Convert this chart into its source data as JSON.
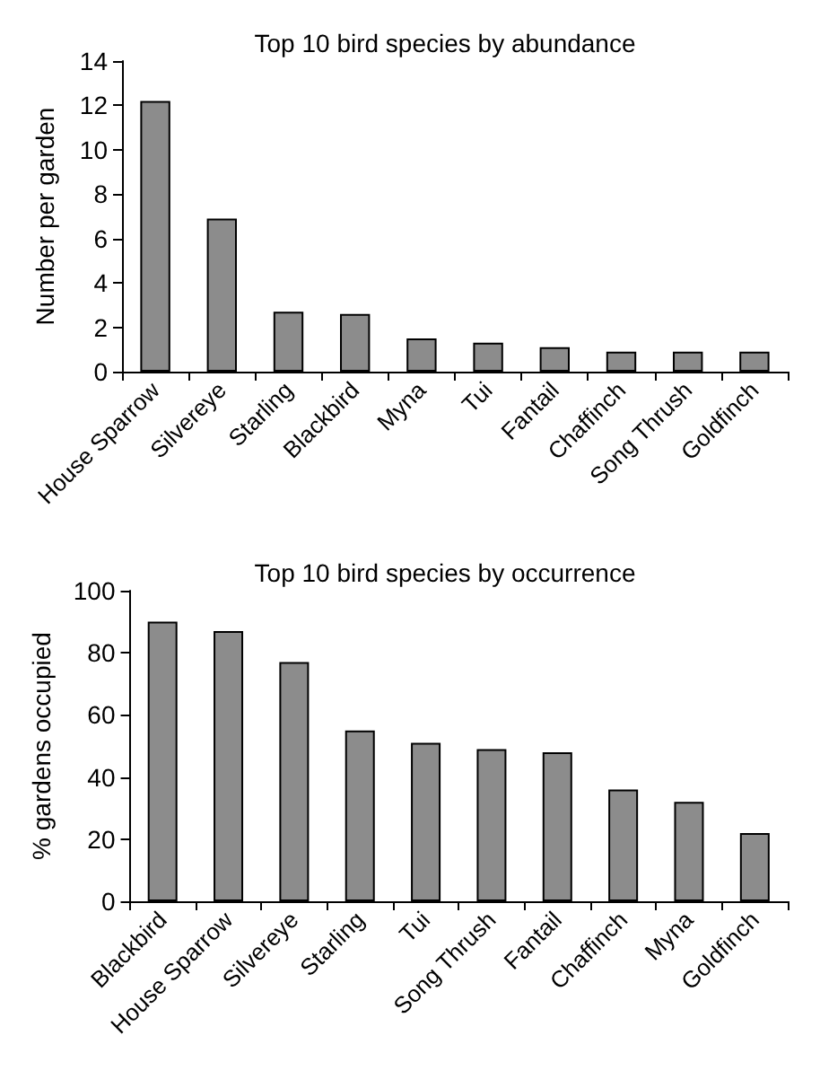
{
  "chart_data": [
    {
      "type": "bar",
      "title": "Top 10 bird species by abundance",
      "ylabel": "Number per garden",
      "categories": [
        "House Sparrow",
        "Silvereye",
        "Starling",
        "Blackbird",
        "Myna",
        "Tui",
        "Fantail",
        "Chaffinch",
        "Song Thrush",
        "Goldfinch"
      ],
      "values": [
        12.2,
        6.9,
        2.7,
        2.6,
        1.5,
        1.3,
        1.1,
        0.9,
        0.9,
        0.9
      ],
      "color": "#8c8c8c",
      "ylim": [
        0,
        14
      ],
      "yticks": [
        0,
        2,
        4,
        6,
        8,
        10,
        12,
        14
      ],
      "grid": false
    },
    {
      "type": "bar",
      "title": "Top 10 bird species by occurrence",
      "ylabel": "% gardens occupied",
      "categories": [
        "Blackbird",
        "House Sparrow",
        "Silvereye",
        "Starling",
        "Tui",
        "Song Thrush",
        "Fantail",
        "Chaffinch",
        "Myna",
        "Goldfinch"
      ],
      "values": [
        90,
        87,
        77,
        55,
        51,
        49,
        48,
        36,
        32,
        22
      ],
      "color": "#8c8c8c",
      "ylim": [
        0,
        100
      ],
      "yticks": [
        0,
        20,
        40,
        60,
        80,
        100
      ],
      "grid": false
    }
  ]
}
